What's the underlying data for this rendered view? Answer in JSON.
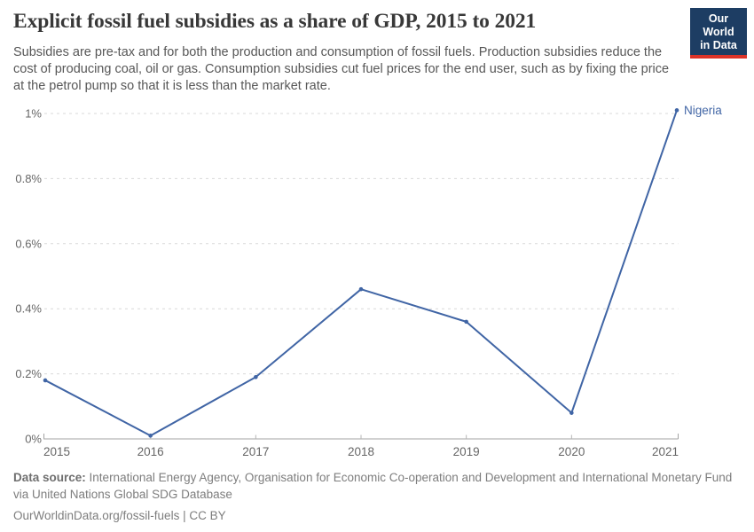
{
  "header": {
    "title": "Explicit fossil fuel subsidies as a share of GDP, 2015 to 2021",
    "subtitle": "Subsidies are pre-tax and for both the production and consumption of fossil fuels. Production subsidies reduce the cost of producing coal, oil or gas. Consumption subsidies cut fuel prices for the end user, such as by fixing the price at the petrol pump so that it is less than the market rate.",
    "logo": {
      "line1": "Our World",
      "line2": "in Data",
      "background_color": "#1d3d63",
      "accent_color": "#dc3328"
    }
  },
  "chart_data": {
    "type": "line",
    "title": "Explicit fossil fuel subsidies as a share of GDP, 2015 to 2021",
    "x": [
      2015,
      2016,
      2017,
      2018,
      2019,
      2020,
      2021
    ],
    "series": [
      {
        "name": "Nigeria",
        "values": [
          0.18,
          0.01,
          0.19,
          0.46,
          0.36,
          0.08,
          1.01
        ],
        "color": "#4065a5"
      }
    ],
    "xlabel": "",
    "ylabel": "",
    "ylim": [
      0,
      1.01
    ],
    "yticks": [
      {
        "value": 0,
        "label": "0%"
      },
      {
        "value": 0.2,
        "label": "0.2%"
      },
      {
        "value": 0.4,
        "label": "0.4%"
      },
      {
        "value": 0.6,
        "label": "0.6%"
      },
      {
        "value": 0.8,
        "label": "0.8%"
      },
      {
        "value": 1,
        "label": "1%"
      }
    ],
    "grid": "horizontal-dashed",
    "legend_position": "end-of-line-label",
    "marker": "point",
    "colors": {
      "gridline": "#d9d9d9",
      "axis_line": "#a3a3a3",
      "tick_mark": "#b5b5b5",
      "tick_label": "#666666"
    }
  },
  "footer": {
    "source_label": "Data source:",
    "source_text": "International Energy Agency, Organisation for Economic Co-operation and Development and International Monetary Fund via United Nations Global SDG Database",
    "license_text": "OurWorldinData.org/fossil-fuels | CC BY"
  }
}
